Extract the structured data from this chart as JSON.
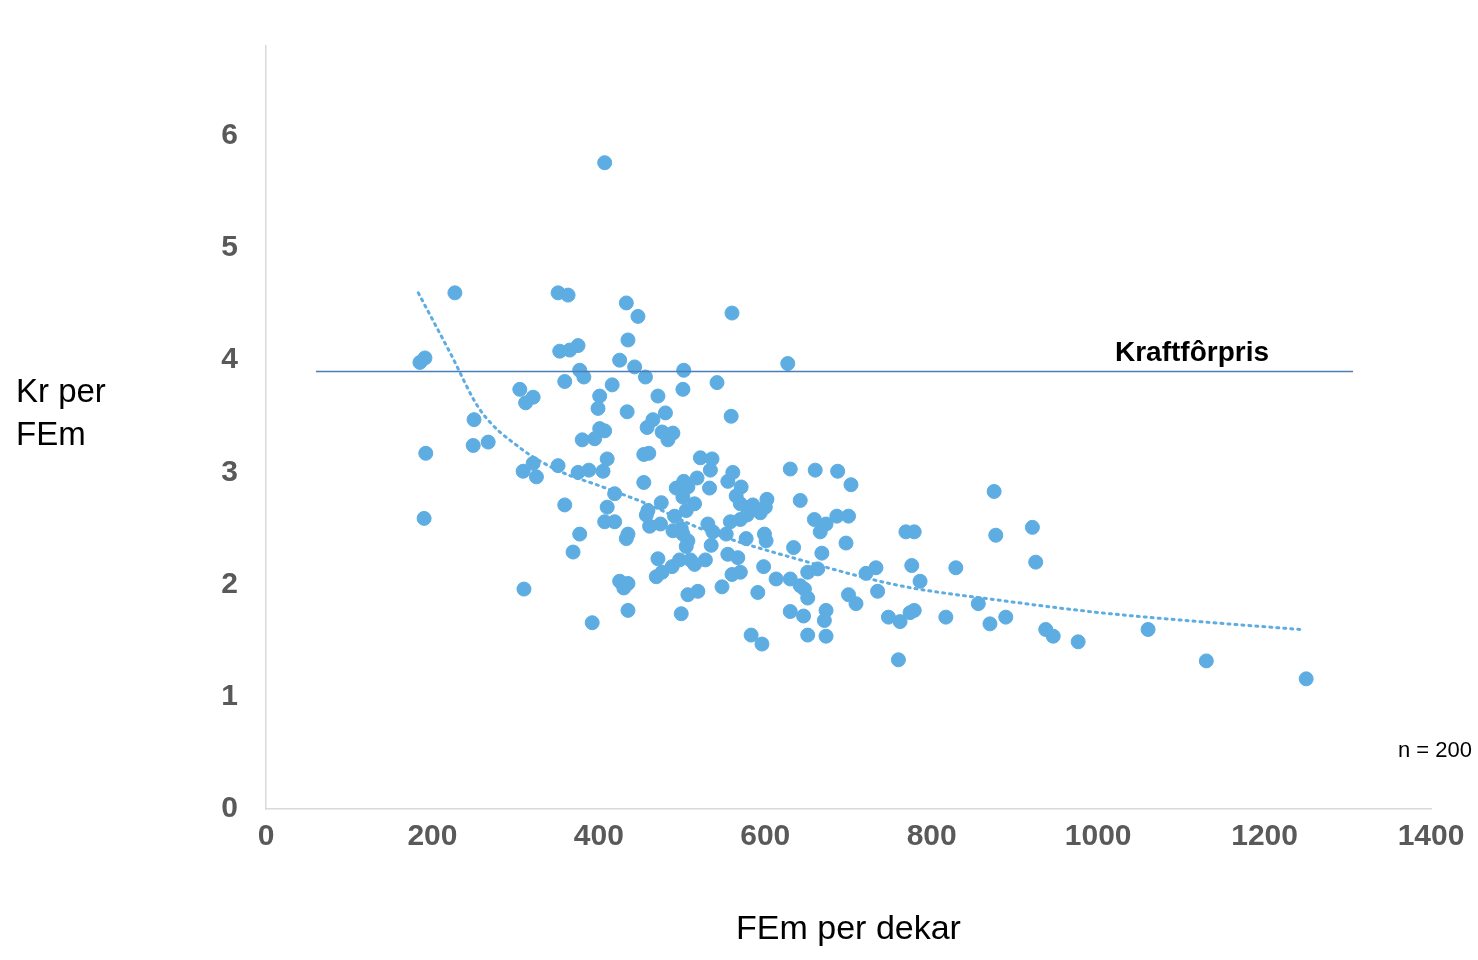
{
  "chart_data": {
    "type": "scatter",
    "xlabel": "FEm per dekar",
    "ylabel": "Kr per FEm",
    "xlim": [
      0,
      1400
    ],
    "xticks": [
      0,
      200,
      400,
      600,
      800,
      1000,
      1200,
      1400
    ],
    "ylim": [
      0,
      6.8
    ],
    "yticks": [
      0,
      1,
      2,
      3,
      4,
      5,
      6
    ],
    "grid": false,
    "legend": false,
    "marker": "circle",
    "ref_lines": [
      {
        "axis": "y",
        "value": 3.9,
        "label": "Kraftfôrpris",
        "color": "#4a7ebb"
      }
    ],
    "annotations": [
      "n = 200"
    ],
    "series": [
      {
        "color": "#5dade2",
        "x": [
          407,
          227,
          351,
          363,
          433,
          447,
          560,
          435,
          353,
          365,
          375,
          185,
          191,
          425,
          443,
          627,
          377,
          502,
          359,
          382,
          456,
          542,
          416,
          305,
          501,
          401,
          471,
          321,
          312,
          399,
          434,
          480,
          559,
          250,
          465,
          458,
          401,
          407,
          476,
          489,
          395,
          380,
          483,
          249,
          267,
          192,
          460,
          454,
          522,
          536,
          410,
          321,
          351,
          630,
          660,
          687,
          309,
          388,
          405,
          375,
          534,
          561,
          325,
          518,
          454,
          555,
          502,
          703,
          571,
          493,
          507,
          875,
          533,
          419,
          501,
          565,
          602,
          642,
          475,
          515,
          359,
          410,
          585,
          570,
          600,
          459,
          505,
          457,
          491,
          578,
          594,
          686,
          700,
          659,
          673,
          407,
          419,
          474,
          531,
          558,
          570,
          461,
          921,
          489,
          499,
          537,
          666,
          769,
          779,
          377,
          435,
          501,
          553,
          599,
          877,
          433,
          577,
          507,
          601,
          697,
          505,
          535,
          634,
          369,
          555,
          567,
          668,
          471,
          497,
          528,
          510,
          925,
          515,
          488,
          776,
          733,
          598,
          663,
          829,
          476,
          570,
          721,
          651,
          560,
          469,
          613,
          630,
          786,
          425,
          435,
          642,
          548,
          430,
          310,
          647,
          519,
          735,
          591,
          507,
          700,
          651,
          709,
          856,
          435,
          499,
          630,
          673,
          779,
          774,
          646,
          748,
          817,
          889,
          392,
          671,
          762,
          870,
          1060,
          937,
          583,
          651,
          673,
          946,
          596,
          976,
          760,
          1130,
          1250,
          190
        ],
        "values": [
          5.76,
          4.6,
          4.6,
          4.58,
          4.51,
          4.39,
          4.42,
          4.18,
          4.08,
          4.09,
          4.13,
          3.98,
          4.02,
          4.0,
          3.94,
          3.97,
          3.91,
          3.91,
          3.81,
          3.85,
          3.85,
          3.8,
          3.78,
          3.74,
          3.74,
          3.68,
          3.68,
          3.67,
          3.62,
          3.57,
          3.54,
          3.53,
          3.5,
          3.47,
          3.47,
          3.4,
          3.39,
          3.37,
          3.36,
          3.35,
          3.3,
          3.29,
          3.29,
          3.24,
          3.27,
          3.17,
          3.17,
          3.16,
          3.13,
          3.12,
          3.12,
          3.08,
          3.06,
          3.03,
          3.02,
          3.01,
          3.01,
          3.02,
          3.01,
          3.0,
          3.02,
          3.0,
          2.96,
          2.95,
          2.91,
          2.92,
          2.92,
          2.89,
          2.87,
          2.86,
          2.87,
          2.83,
          2.86,
          2.81,
          2.78,
          2.79,
          2.76,
          2.75,
          2.73,
          2.72,
          2.71,
          2.69,
          2.71,
          2.72,
          2.69,
          2.66,
          2.66,
          2.62,
          2.61,
          2.62,
          2.64,
          2.61,
          2.61,
          2.58,
          2.54,
          2.56,
          2.56,
          2.54,
          2.54,
          2.56,
          2.58,
          2.52,
          2.51,
          2.48,
          2.5,
          2.47,
          2.47,
          2.47,
          2.47,
          2.45,
          2.45,
          2.45,
          2.45,
          2.45,
          2.44,
          2.41,
          2.41,
          2.39,
          2.39,
          2.37,
          2.34,
          2.35,
          2.33,
          2.29,
          2.27,
          2.24,
          2.28,
          2.23,
          2.22,
          2.22,
          2.22,
          2.2,
          2.18,
          2.16,
          2.17,
          2.15,
          2.16,
          2.14,
          2.15,
          2.11,
          2.11,
          2.1,
          2.11,
          2.09,
          2.07,
          2.05,
          2.05,
          2.03,
          2.03,
          2.01,
          1.99,
          1.98,
          1.97,
          1.96,
          1.96,
          1.94,
          1.94,
          1.93,
          1.91,
          1.91,
          1.88,
          1.83,
          1.83,
          1.77,
          1.74,
          1.76,
          1.77,
          1.77,
          1.75,
          1.72,
          1.71,
          1.71,
          1.71,
          1.66,
          1.68,
          1.67,
          1.65,
          1.6,
          1.6,
          1.55,
          1.55,
          1.54,
          1.54,
          1.47,
          1.49,
          1.33,
          1.32,
          1.16,
          2.59
        ]
      },
      {
        "type": "line",
        "color": "#5dade2",
        "marker": "none",
        "line_style": "dotted",
        "x": [
          183,
          221,
          257,
          305,
          353,
          401,
          461,
          522,
          642,
          762,
          882,
          1002,
          1122,
          1243
        ],
        "values": [
          4.6,
          4.07,
          3.56,
          3.22,
          3.01,
          2.88,
          2.71,
          2.5,
          2.22,
          1.99,
          1.86,
          1.75,
          1.67,
          1.6
        ]
      }
    ]
  }
}
